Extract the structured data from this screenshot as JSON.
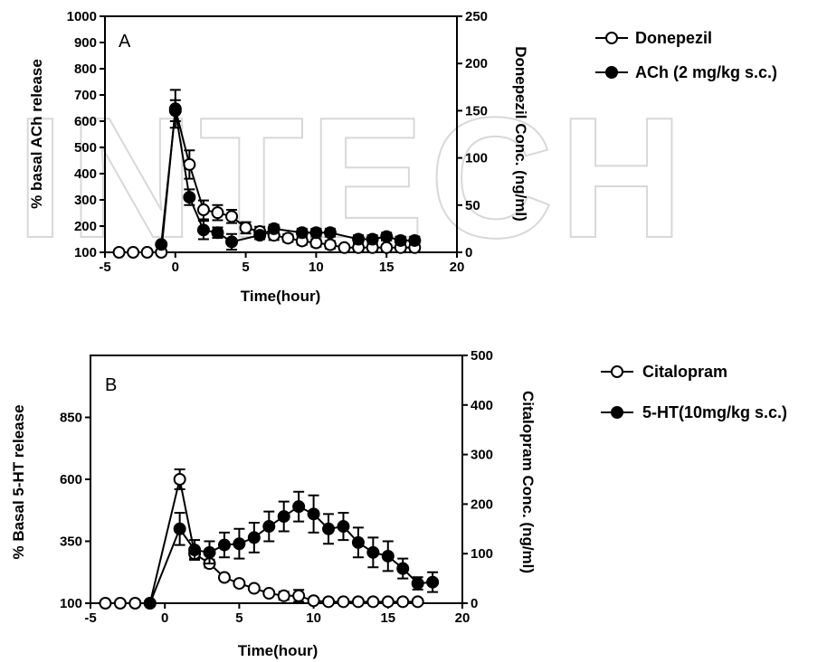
{
  "watermark": "INTECH",
  "chart_data": [
    {
      "type": "line",
      "panel_label": "A",
      "xlabel": "Time(hour)",
      "ylabel_left": "% basal ACh release",
      "ylabel_right": "Donepezil Conc. (ng/ml)",
      "xlim": [
        -5,
        20
      ],
      "ylim_left": [
        100,
        1000
      ],
      "ylim_right": [
        0,
        250
      ],
      "x_ticks": [
        "-5",
        "0",
        "5",
        "10",
        "15",
        "20"
      ],
      "y_ticks_left": [
        "100",
        "200",
        "300",
        "400",
        "500",
        "600",
        "700",
        "800",
        "900",
        "1000"
      ],
      "y_ticks_right": [
        "0",
        "50",
        "100",
        "150",
        "200",
        "250"
      ],
      "legend_position": "right",
      "series": [
        {
          "name": "Donepezil",
          "marker": "open-circle",
          "axis": "right",
          "x": [
            -4,
            -3,
            -2,
            -1,
            0,
            1,
            2,
            3,
            4,
            5,
            6,
            7,
            8,
            9,
            10,
            11,
            12,
            13,
            14,
            15,
            16,
            17
          ],
          "y": [
            0,
            0,
            0,
            0,
            152,
            93,
            45,
            42,
            38,
            26,
            22,
            18,
            15,
            12,
            10,
            8,
            5,
            5,
            5,
            5,
            5,
            5
          ],
          "err": [
            0,
            0,
            0,
            0,
            20,
            15,
            10,
            8,
            7,
            6,
            5,
            5,
            4,
            4,
            4,
            4,
            3,
            3,
            3,
            3,
            3,
            3
          ]
        },
        {
          "name": "ACh (2 mg/kg s.c.)",
          "marker": "filled-circle",
          "axis": "left",
          "x": [
            -1,
            0,
            1,
            2,
            3,
            4,
            6,
            7,
            9,
            10,
            11,
            13,
            14,
            15,
            16,
            17
          ],
          "y": [
            130,
            640,
            310,
            185,
            175,
            140,
            165,
            190,
            175,
            175,
            175,
            150,
            150,
            160,
            145,
            145
          ],
          "err": [
            0,
            40,
            30,
            35,
            20,
            30,
            15,
            15,
            15,
            15,
            15,
            15,
            15,
            15,
            15,
            15
          ]
        }
      ]
    },
    {
      "type": "line",
      "panel_label": "B",
      "xlabel": "Time(hour)",
      "ylabel_left": "% Basal 5-HT release",
      "ylabel_right": "Citalopram Conc. (ng/ml)",
      "xlim": [
        -5,
        20
      ],
      "ylim_left": [
        100,
        1100
      ],
      "ylim_right": [
        0,
        500
      ],
      "x_ticks": [
        "-5",
        "0",
        "5",
        "10",
        "15",
        "20"
      ],
      "y_ticks_left": [
        "100",
        "350",
        "600",
        "850"
      ],
      "y_ticks_right": [
        "0",
        "100",
        "200",
        "300",
        "400",
        "500"
      ],
      "legend_position": "right",
      "series": [
        {
          "name": "Citalopram",
          "marker": "open-circle",
          "axis": "right",
          "x": [
            -4,
            -3,
            -2,
            -1,
            1,
            2,
            3,
            4,
            5,
            6,
            7,
            8,
            9,
            10,
            11,
            12,
            13,
            14,
            15,
            16,
            17
          ],
          "y": [
            0,
            0,
            0,
            0,
            250,
            100,
            80,
            52,
            40,
            30,
            20,
            15,
            15,
            5,
            3,
            3,
            3,
            3,
            3,
            3,
            3
          ],
          "err": [
            0,
            0,
            0,
            0,
            20,
            10,
            8,
            5,
            5,
            5,
            5,
            8,
            12,
            3,
            0,
            0,
            0,
            0,
            0,
            0,
            0
          ]
        },
        {
          "name": "5-HT(10mg/kg s.c.)",
          "marker": "filled-circle",
          "axis": "left",
          "x": [
            -1,
            1,
            2,
            3,
            4,
            5,
            6,
            7,
            8,
            9,
            10,
            11,
            12,
            13,
            14,
            15,
            16,
            17,
            18
          ],
          "y": [
            100,
            400,
            315,
            305,
            335,
            340,
            365,
            410,
            450,
            490,
            460,
            400,
            410,
            345,
            305,
            290,
            240,
            180,
            185
          ],
          "err": [
            0,
            65,
            40,
            45,
            50,
            60,
            60,
            60,
            60,
            60,
            75,
            60,
            55,
            60,
            60,
            60,
            40,
            25,
            40
          ]
        }
      ]
    }
  ]
}
